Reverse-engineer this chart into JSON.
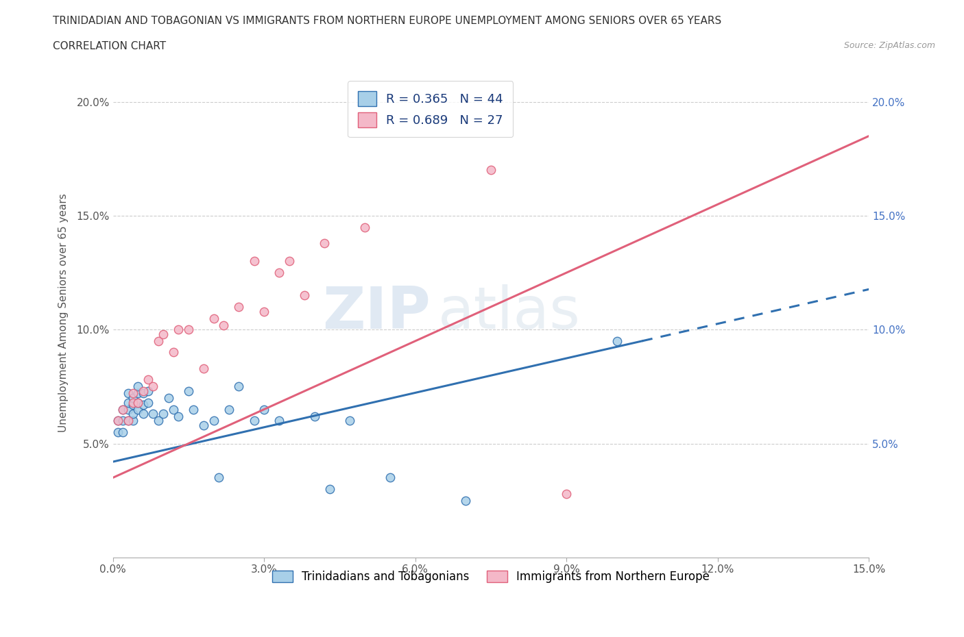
{
  "title": "TRINIDADIAN AND TOBAGONIAN VS IMMIGRANTS FROM NORTHERN EUROPE UNEMPLOYMENT AMONG SENIORS OVER 65 YEARS",
  "subtitle": "CORRELATION CHART",
  "source": "Source: ZipAtlas.com",
  "ylabel": "Unemployment Among Seniors over 65 years",
  "legend_label1": "Trinidadians and Tobagonians",
  "legend_label2": "Immigrants from Northern Europe",
  "R1": 0.365,
  "N1": 44,
  "R2": 0.689,
  "N2": 27,
  "color1": "#a8cfe8",
  "color2": "#f4b8c8",
  "trendline1_color": "#3070b0",
  "trendline2_color": "#e0607a",
  "watermark_zip": "ZIP",
  "watermark_atlas": "atlas",
  "xlim": [
    0.0,
    0.15
  ],
  "ylim": [
    0.0,
    0.215
  ],
  "xticks": [
    0.0,
    0.03,
    0.06,
    0.09,
    0.12,
    0.15
  ],
  "yticks": [
    0.05,
    0.1,
    0.15,
    0.2
  ],
  "scatter1_x": [
    0.001,
    0.001,
    0.002,
    0.002,
    0.002,
    0.003,
    0.003,
    0.003,
    0.003,
    0.004,
    0.004,
    0.004,
    0.004,
    0.005,
    0.005,
    0.005,
    0.005,
    0.006,
    0.006,
    0.006,
    0.007,
    0.007,
    0.008,
    0.009,
    0.01,
    0.011,
    0.012,
    0.013,
    0.015,
    0.016,
    0.018,
    0.02,
    0.021,
    0.023,
    0.025,
    0.028,
    0.03,
    0.033,
    0.04,
    0.043,
    0.047,
    0.055,
    0.07,
    0.1
  ],
  "scatter1_y": [
    0.055,
    0.06,
    0.065,
    0.06,
    0.055,
    0.06,
    0.065,
    0.068,
    0.072,
    0.06,
    0.063,
    0.067,
    0.07,
    0.065,
    0.068,
    0.072,
    0.075,
    0.063,
    0.067,
    0.072,
    0.068,
    0.073,
    0.063,
    0.06,
    0.063,
    0.07,
    0.065,
    0.062,
    0.073,
    0.065,
    0.058,
    0.06,
    0.035,
    0.065,
    0.075,
    0.06,
    0.065,
    0.06,
    0.062,
    0.03,
    0.06,
    0.035,
    0.025,
    0.095
  ],
  "scatter2_x": [
    0.001,
    0.002,
    0.003,
    0.004,
    0.004,
    0.005,
    0.006,
    0.007,
    0.008,
    0.009,
    0.01,
    0.012,
    0.013,
    0.015,
    0.018,
    0.02,
    0.022,
    0.025,
    0.028,
    0.03,
    0.033,
    0.035,
    0.038,
    0.042,
    0.05,
    0.075,
    0.09
  ],
  "scatter2_y": [
    0.06,
    0.065,
    0.06,
    0.068,
    0.072,
    0.068,
    0.073,
    0.078,
    0.075,
    0.095,
    0.098,
    0.09,
    0.1,
    0.1,
    0.083,
    0.105,
    0.102,
    0.11,
    0.13,
    0.108,
    0.125,
    0.13,
    0.115,
    0.138,
    0.145,
    0.17,
    0.028
  ],
  "trend1_x0": 0.0,
  "trend1_y0": 0.042,
  "trend1_x1": 0.105,
  "trend1_y1": 0.095,
  "trend1_dash_x0": 0.105,
  "trend1_dash_x1": 0.15,
  "trend2_x0": 0.0,
  "trend2_y0": 0.035,
  "trend2_x1": 0.15,
  "trend2_y1": 0.185
}
